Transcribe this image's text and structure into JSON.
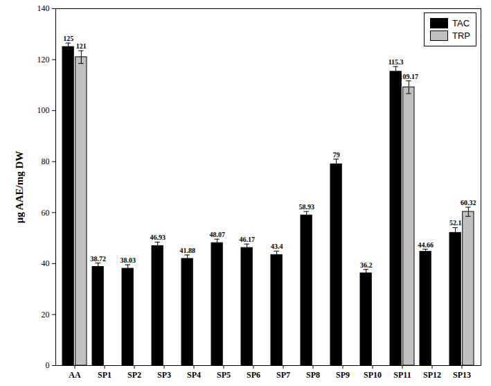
{
  "chart_data": {
    "type": "bar",
    "categories": [
      "AA",
      "SP1",
      "SP2",
      "SP3",
      "SP4",
      "SP5",
      "SP6",
      "SP7",
      "SP8",
      "SP9",
      "SP10",
      "SP11",
      "SP12",
      "SP13"
    ],
    "series": [
      {
        "name": "TAC",
        "color": "#000000",
        "values": [
          125,
          38.72,
          38.03,
          46.93,
          41.88,
          48.07,
          46.17,
          43.4,
          58.93,
          79,
          36.2,
          115.3,
          44.66,
          52.1
        ],
        "errors": [
          1.5,
          1.5,
          1.5,
          1.5,
          1.5,
          1.5,
          1.5,
          1.5,
          1.5,
          2,
          1.5,
          2,
          1,
          2
        ]
      },
      {
        "name": "TRP",
        "color": "#c0c0c0",
        "values": [
          121,
          null,
          null,
          null,
          null,
          null,
          null,
          null,
          null,
          null,
          null,
          109.17,
          null,
          60.32
        ],
        "errors": [
          2.5,
          null,
          null,
          null,
          null,
          null,
          null,
          null,
          null,
          null,
          null,
          2.5,
          null,
          1.8
        ]
      }
    ],
    "ylabel": "µg AAE/mg DW",
    "ylim": [
      0,
      140
    ],
    "yticks": [
      0,
      20,
      40,
      60,
      80,
      100,
      120,
      140
    ],
    "legend": "upper right",
    "data_labels": true,
    "grid": false
  }
}
